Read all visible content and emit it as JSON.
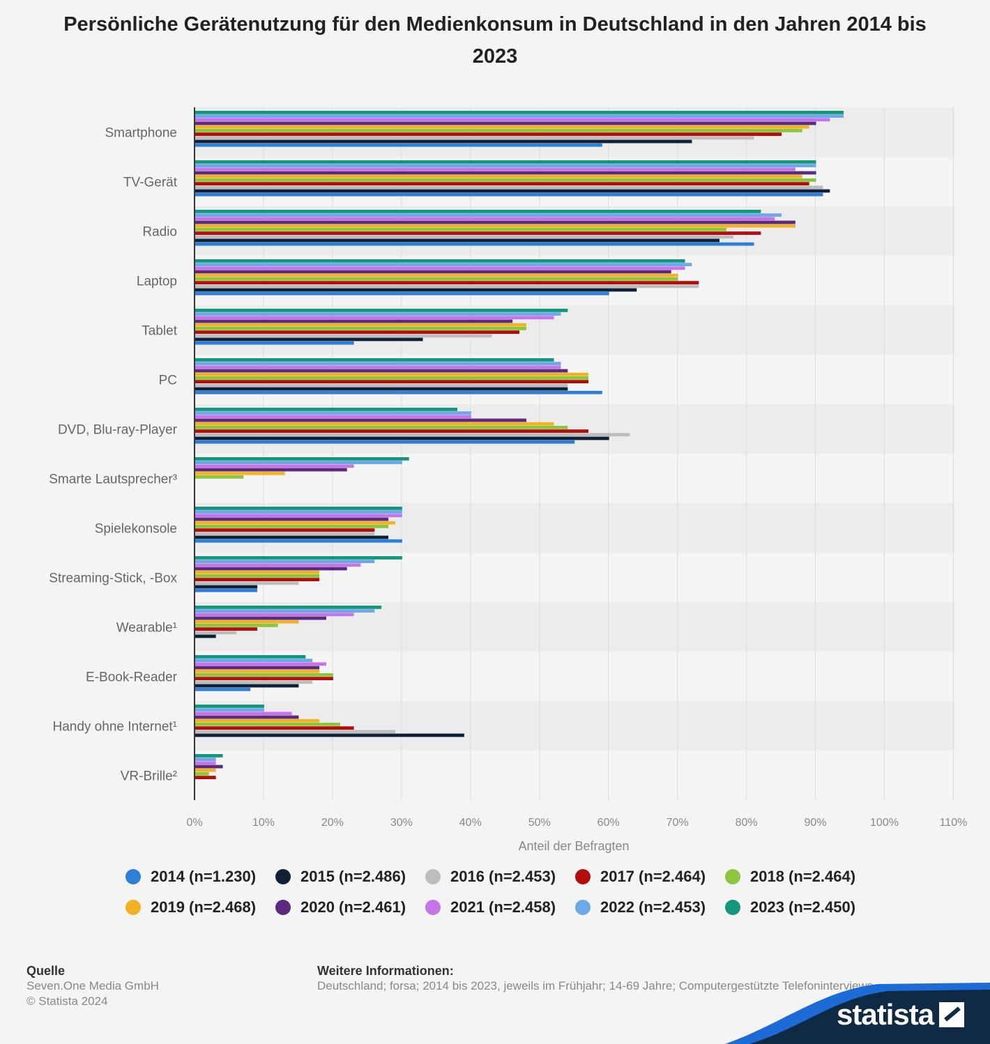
{
  "title": "Persönliche Gerätenutzung für den Medienkonsum in Deutschland in den Jahren 2014 bis 2023",
  "chart_data": {
    "type": "bar",
    "orientation": "horizontal",
    "title": "Persönliche Gerätenutzung für den Medienkonsum in Deutschland in den Jahren 2014 bis 2023",
    "xlabel": "Anteil der Befragten",
    "ylabel": "",
    "xlim": [
      0,
      110
    ],
    "x_ticks": [
      "0%",
      "10%",
      "20%",
      "30%",
      "40%",
      "50%",
      "60%",
      "70%",
      "80%",
      "90%",
      "100%",
      "110%"
    ],
    "categories": [
      "Smartphone",
      "TV-Gerät",
      "Radio",
      "Laptop",
      "Tablet",
      "PC",
      "DVD, Blu-ray-Player",
      "Smarte Lautsprecher³",
      "Spielekonsole",
      "Streaming-Stick, -Box",
      "Wearable¹",
      "E-Book-Reader",
      "Handy ohne Internet¹",
      "VR-Brille²"
    ],
    "series": [
      {
        "name": "2014 (n=1.230)",
        "color": "#2f7ed8",
        "values": [
          59,
          91,
          81,
          60,
          23,
          59,
          55,
          null,
          30,
          9,
          null,
          8,
          null,
          null
        ]
      },
      {
        "name": "2015 (n=2.486)",
        "color": "#0d2137",
        "values": [
          72,
          92,
          76,
          64,
          33,
          54,
          60,
          null,
          28,
          9,
          3,
          15,
          39,
          null
        ]
      },
      {
        "name": "2016 (n=2.453)",
        "color": "#bdbdbd",
        "values": [
          81,
          91,
          78,
          73,
          43,
          54,
          63,
          null,
          26,
          15,
          6,
          17,
          29,
          null
        ]
      },
      {
        "name": "2017 (n=2.464)",
        "color": "#b30d0d",
        "values": [
          85,
          89,
          82,
          73,
          47,
          57,
          57,
          null,
          26,
          18,
          9,
          20,
          23,
          3
        ]
      },
      {
        "name": "2018 (n=2.464)",
        "color": "#8cc63f",
        "values": [
          88,
          90,
          77,
          70,
          48,
          57,
          54,
          7,
          28,
          18,
          12,
          20,
          21,
          2
        ]
      },
      {
        "name": "2019 (n=2.468)",
        "color": "#f0b323",
        "values": [
          89,
          88,
          87,
          70,
          48,
          57,
          52,
          13,
          29,
          18,
          15,
          18,
          18,
          3
        ]
      },
      {
        "name": "2020 (n=2.461)",
        "color": "#5b2a7f",
        "values": [
          90,
          90,
          87,
          69,
          46,
          54,
          48,
          22,
          28,
          22,
          19,
          18,
          15,
          4
        ]
      },
      {
        "name": "2021 (n=2.458)",
        "color": "#c774e8",
        "values": [
          92,
          87,
          84,
          71,
          52,
          53,
          40,
          23,
          30,
          24,
          23,
          19,
          14,
          3
        ]
      },
      {
        "name": "2022 (n=2.453)",
        "color": "#6fa8e8",
        "values": [
          94,
          90,
          85,
          72,
          53,
          53,
          40,
          30,
          30,
          26,
          26,
          17,
          10,
          3
        ]
      },
      {
        "name": "2023 (n=2.450)",
        "color": "#13977c",
        "values": [
          94,
          90,
          82,
          71,
          54,
          52,
          38,
          31,
          30,
          30,
          27,
          16,
          10,
          4
        ]
      }
    ]
  },
  "footer": {
    "source_label": "Quelle",
    "source_line1": "Seven.One Media GmbH",
    "source_line2": "© Statista 2024",
    "info_label": "Weitere Informationen:",
    "info_text": "Deutschland; forsa; 2014 bis 2023, jeweils im Frühjahr; 14-69 Jahre; Computergestützte Telefoninterviews (CATI)",
    "logo_text": "statista"
  },
  "colors": {
    "background": "#f4f4f4",
    "brand_dark": "#0f2a45",
    "brand_blue": "#1c6bd6"
  }
}
